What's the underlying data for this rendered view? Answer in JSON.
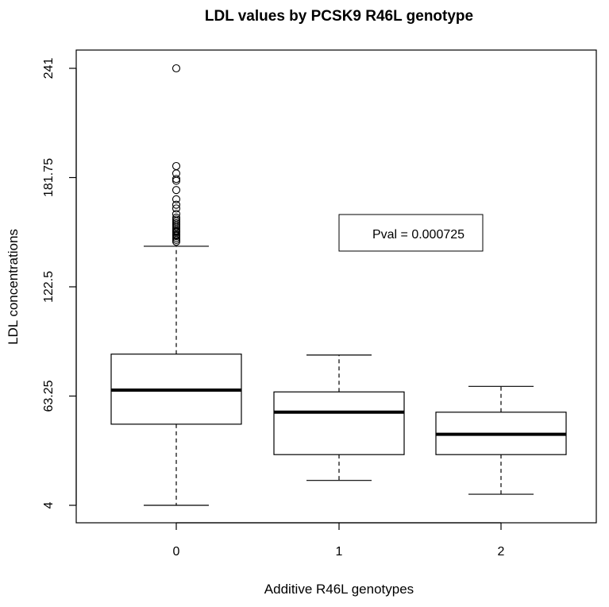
{
  "chart_data": {
    "type": "box",
    "title": "LDL values by PCSK9 R46L genotype",
    "xlabel": "Additive R46L genotypes",
    "ylabel": "LDL concentrations",
    "ylim": [
      4,
      241
    ],
    "y_ticks": [
      4,
      63.25,
      122.5,
      181.75,
      241
    ],
    "y_tick_labels": [
      "4",
      "63.25",
      "122.5",
      "181.75",
      "241"
    ],
    "categories": [
      "0",
      "1",
      "2"
    ],
    "boxes": [
      {
        "category": "0",
        "whisker_low": 4,
        "q1": 48,
        "median": 66.5,
        "q3": 86,
        "whisker_high": 144.5,
        "outliers": [
          147,
          148,
          149,
          150,
          150.5,
          151,
          152,
          152.5,
          153,
          154,
          155,
          156,
          157,
          158,
          159,
          160,
          162,
          165,
          167,
          170,
          175,
          180,
          181,
          184,
          188,
          241
        ]
      },
      {
        "category": "1",
        "whisker_low": 17.5,
        "q1": 31.5,
        "median": 54.5,
        "q3": 65.5,
        "whisker_high": 85.5
      },
      {
        "category": "2",
        "whisker_low": 10,
        "q1": 31.5,
        "median": 42.5,
        "q3": 54.5,
        "whisker_high": 68.5
      }
    ],
    "annotation": "Pval = 0.000725"
  }
}
